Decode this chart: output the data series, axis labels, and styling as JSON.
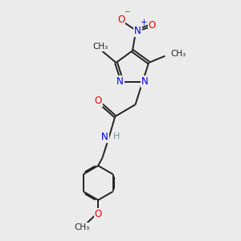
{
  "bg_color": "#ebebeb",
  "bond_color": "#222222",
  "N_color": "#0000ee",
  "O_color": "#ee0000",
  "H_color": "#6a9a9a",
  "bond_width": 1.4,
  "font_size": 8.5,
  "fig_size": [
    3.0,
    3.0
  ],
  "dpi": 100,
  "xlim": [
    0,
    10
  ],
  "ylim": [
    0,
    10
  ]
}
